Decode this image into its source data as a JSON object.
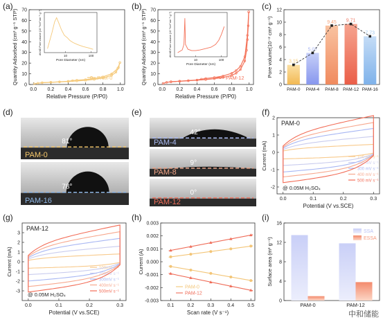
{
  "chart_data": [
    {
      "panel": "(a)",
      "type": "line",
      "xlabel": "Relative Pressure (P/P0)",
      "ylabel": "Quantity Adsorbed (cm³ g⁻¹ STP)",
      "xlim": [
        -0.05,
        1.05
      ],
      "ylim": [
        0,
        70
      ],
      "xticks": [
        "0.0",
        "0.2",
        "0.4",
        "0.6",
        "0.8",
        "1.0"
      ],
      "yticks": [
        "0",
        "10",
        "20",
        "30",
        "40",
        "50",
        "60",
        "70"
      ],
      "series": [
        {
          "name": "PAM-0",
          "color": "#f5c97a",
          "adsorption": [
            [
              0.01,
              0.6
            ],
            [
              0.05,
              1.2
            ],
            [
              0.1,
              1.6
            ],
            [
              0.2,
              2.0
            ],
            [
              0.3,
              2.4
            ],
            [
              0.4,
              2.8
            ],
            [
              0.5,
              3.3
            ],
            [
              0.6,
              3.9
            ],
            [
              0.7,
              4.7
            ],
            [
              0.8,
              6.0
            ],
            [
              0.9,
              8.5
            ],
            [
              0.95,
              11.5
            ],
            [
              0.98,
              16.0
            ],
            [
              0.995,
              20.5
            ]
          ],
          "desorption": [
            [
              0.995,
              20.5
            ],
            [
              0.97,
              15.0
            ],
            [
              0.9,
              10.0
            ],
            [
              0.8,
              7.2
            ],
            [
              0.7,
              5.6
            ],
            [
              0.6,
              4.6
            ],
            [
              0.5,
              4.0
            ],
            [
              0.45,
              3.6
            ],
            [
              0.4,
              3.0
            ],
            [
              0.3,
              2.5
            ],
            [
              0.2,
              2.1
            ],
            [
              0.1,
              1.7
            ]
          ]
        }
      ],
      "inset": {
        "xlabel": "Pore Diameter (nm)",
        "ylabel": "dV/dD Pore volume (10⁻³cm³ nm⁻¹ g⁻¹)",
        "xscale": "log",
        "xticks": [
          "10",
          "100"
        ],
        "points": [
          [
            2,
            0.3
          ],
          [
            3,
            1.5
          ],
          [
            3.8,
            2.3
          ],
          [
            4.5,
            2.6
          ],
          [
            5.5,
            2.2
          ],
          [
            7,
            1.7
          ],
          [
            9,
            1.3
          ],
          [
            12,
            1.1
          ],
          [
            15,
            0.9
          ],
          [
            20,
            0.75
          ],
          [
            30,
            0.6
          ],
          [
            50,
            0.45
          ],
          [
            80,
            0.35
          ],
          [
            120,
            0.25
          ]
        ]
      }
    },
    {
      "panel": "(b)",
      "type": "line",
      "xlabel": "Relative Pressure (P/P0)",
      "ylabel": "Quantity Adsorbed (cm³ g⁻¹ STP)",
      "xlim": [
        -0.05,
        1.05
      ],
      "ylim": [
        0,
        70
      ],
      "xticks": [
        "0.0",
        "0.2",
        "0.4",
        "0.6",
        "0.8",
        "1.0"
      ],
      "yticks": [
        "0",
        "10",
        "20",
        "30",
        "40",
        "50",
        "60",
        "70"
      ],
      "series": [
        {
          "name": "PAM-12",
          "color": "#f4735a",
          "adsorption": [
            [
              0.01,
              1.0
            ],
            [
              0.05,
              2.0
            ],
            [
              0.1,
              2.5
            ],
            [
              0.2,
              3.0
            ],
            [
              0.3,
              3.5
            ],
            [
              0.4,
              4.0
            ],
            [
              0.5,
              4.6
            ],
            [
              0.6,
              5.4
            ],
            [
              0.7,
              6.6
            ],
            [
              0.8,
              8.5
            ],
            [
              0.85,
              10.5
            ],
            [
              0.9,
              14.0
            ],
            [
              0.95,
              22.0
            ],
            [
              0.97,
              32.0
            ],
            [
              0.98,
              42.0
            ],
            [
              0.99,
              55.0
            ],
            [
              0.995,
              68.0
            ]
          ],
          "desorption": [
            [
              0.995,
              68.0
            ],
            [
              0.98,
              46.0
            ],
            [
              0.95,
              26.0
            ],
            [
              0.9,
              17.0
            ],
            [
              0.85,
              13.0
            ],
            [
              0.8,
              10.5
            ],
            [
              0.7,
              8.0
            ],
            [
              0.6,
              6.5
            ],
            [
              0.5,
              5.6
            ],
            [
              0.45,
              5.0
            ],
            [
              0.4,
              4.2
            ],
            [
              0.3,
              3.6
            ],
            [
              0.2,
              3.1
            ],
            [
              0.1,
              2.6
            ]
          ]
        }
      ],
      "inset": {
        "xlabel": "Pore Diameter (nm)",
        "ylabel": "dV/dD Pore volume (10⁻³cm³ nm⁻¹ g⁻¹)",
        "xscale": "log",
        "xticks": [
          "10",
          "100"
        ],
        "points": [
          [
            2,
            0.3
          ],
          [
            3,
            0.5
          ],
          [
            3.5,
            0.9
          ],
          [
            3.8,
            2.8
          ],
          [
            4.0,
            0.9
          ],
          [
            5,
            0.55
          ],
          [
            7,
            0.45
          ],
          [
            10,
            0.45
          ],
          [
            15,
            0.5
          ],
          [
            25,
            0.6
          ],
          [
            40,
            0.7
          ],
          [
            60,
            0.9
          ],
          [
            80,
            1.2
          ],
          [
            100,
            1.6
          ],
          [
            120,
            2.0
          ],
          [
            130,
            2.2
          ]
        ]
      }
    },
    {
      "panel": "(c)",
      "type": "bar",
      "ylabel": "Pore volume(10⁻² cm³ g⁻¹)",
      "ylim": [
        0,
        12
      ],
      "yticks": [
        "0",
        "2",
        "4",
        "6",
        "8",
        "10",
        "12"
      ],
      "categories": [
        "PAM-0",
        "PAM-4",
        "PAM-8",
        "PAM-12",
        "PAM-16"
      ],
      "values": [
        3.15,
        5.07,
        9.45,
        9.71,
        7.73
      ],
      "value_labels": [
        "3.15",
        "5.07",
        "9.45",
        "9.71",
        "7.73"
      ],
      "colors": [
        "#f7cc7a",
        "#a5b3f2",
        "#f5a57e",
        "#f07d68",
        "#9ec6ee"
      ],
      "trend_line": "dashed"
    },
    {
      "panel": "(d)",
      "type": "image",
      "photos": [
        {
          "label": "PAM-0",
          "angle": "81°",
          "label_color": "#f7c86a"
        },
        {
          "label": "PAM-16",
          "angle": "78°",
          "label_color": "#8fb8e8"
        }
      ]
    },
    {
      "panel": "(e)",
      "type": "image",
      "photos": [
        {
          "label": "PAM-4",
          "angle": "42°",
          "label_color": "#a9b9f0"
        },
        {
          "label": "PAM-8",
          "angle": "9°",
          "label_color": "#f3a587"
        },
        {
          "label": "PAM-12",
          "angle": "0°",
          "label_color": "#ef6f5a"
        }
      ]
    },
    {
      "panel": "(f)",
      "type": "line",
      "title": "PAM-0",
      "xlabel": "Potential (V vs.SCE)",
      "ylabel": "Current (mA)",
      "xlim": [
        -0.02,
        0.32
      ],
      "ylim": [
        -2.4,
        2.0
      ],
      "xticks": [
        "0.0",
        "0.1",
        "0.2",
        "0.3"
      ],
      "yticks": [
        "-2",
        "-1",
        "0",
        "1",
        "2"
      ],
      "annotation": "@ 0.05M H₂SO₄",
      "series": [
        {
          "name": "100 mV s⁻¹",
          "color": "#f8c98a",
          "amp": 0.4
        },
        {
          "name": "200 mV s⁻¹",
          "color": "#c9ccee",
          "amp": 0.8
        },
        {
          "name": "300 mV s⁻¹",
          "color": "#a7b6f3",
          "amp": 1.2
        },
        {
          "name": "400 mV s⁻¹",
          "color": "#f7a88e",
          "amp": 1.5
        },
        {
          "name": "500 mV s⁻¹",
          "color": "#f26b55",
          "amp": 1.85
        }
      ]
    },
    {
      "panel": "(g)",
      "type": "line",
      "title": "PAM-12",
      "xlabel": "Potential (V vs.SCE)",
      "ylabel": "Current (mA)",
      "xlim": [
        -0.02,
        0.32
      ],
      "ylim": [
        -4.0,
        4.0
      ],
      "xticks": [
        "0.0",
        "0.1",
        "0.2",
        "0.3"
      ],
      "yticks": [
        "-3",
        "-2",
        "-1",
        "0",
        "1",
        "2",
        "3"
      ],
      "annotation": "@ 0.05M H₂SO₄",
      "series": [
        {
          "name": "100mV s⁻¹",
          "color": "#f8c98a",
          "amp": 0.7
        },
        {
          "name": "200mV s⁻¹",
          "color": "#c9ccee",
          "amp": 1.4
        },
        {
          "name": "300mV s⁻¹",
          "color": "#a7b6f3",
          "amp": 2.1
        },
        {
          "name": "400mV s⁻¹",
          "color": "#f7a88e",
          "amp": 2.7
        },
        {
          "name": "500mV s⁻¹",
          "color": "#f26b55",
          "amp": 3.3
        }
      ]
    },
    {
      "panel": "(h)",
      "type": "scatter",
      "xlabel": "Scan rate (V s⁻¹)",
      "ylabel": "Current (A)",
      "xlim": [
        0.05,
        0.52
      ],
      "ylim": [
        -0.003,
        0.003
      ],
      "xticks": [
        "0.1",
        "0.2",
        "0.3",
        "0.4",
        "0.5"
      ],
      "yticks": [
        "-0.003",
        "-0.002",
        "-0.001",
        "0.000",
        "0.001",
        "0.002",
        "0.003"
      ],
      "x": [
        0.1,
        0.2,
        0.3,
        0.4,
        0.5
      ],
      "series": [
        {
          "name": "PAM-0",
          "color": "#f3c577",
          "anodic": [
            0.00038,
            0.00058,
            0.00079,
            0.001,
            0.00121
          ],
          "cathodic": [
            -0.00036,
            -0.00064,
            -0.0009,
            -0.00118,
            -0.00145
          ]
        },
        {
          "name": "PAM-12",
          "color": "#ef6c58",
          "anodic": [
            0.00088,
            0.00117,
            0.00148,
            0.00177,
            0.00206
          ],
          "cathodic": [
            -0.00092,
            -0.00125,
            -0.00158,
            -0.00189,
            -0.0022
          ]
        }
      ]
    },
    {
      "panel": "(i)",
      "type": "bar",
      "ylabel": "Surface area (m² g⁻¹)",
      "ylim": [
        0,
        16
      ],
      "yticks": [
        "0",
        "4",
        "8",
        "12",
        "16"
      ],
      "categories": [
        "PAM-0",
        "PAM-12"
      ],
      "series": [
        {
          "name": "SSA",
          "color": "#b7bff3",
          "values": [
            13.5,
            11.8
          ]
        },
        {
          "name": "ESSA",
          "color": "#f59a7e",
          "values": [
            0.9,
            3.8
          ]
        }
      ]
    }
  ],
  "watermark": "中和储能"
}
